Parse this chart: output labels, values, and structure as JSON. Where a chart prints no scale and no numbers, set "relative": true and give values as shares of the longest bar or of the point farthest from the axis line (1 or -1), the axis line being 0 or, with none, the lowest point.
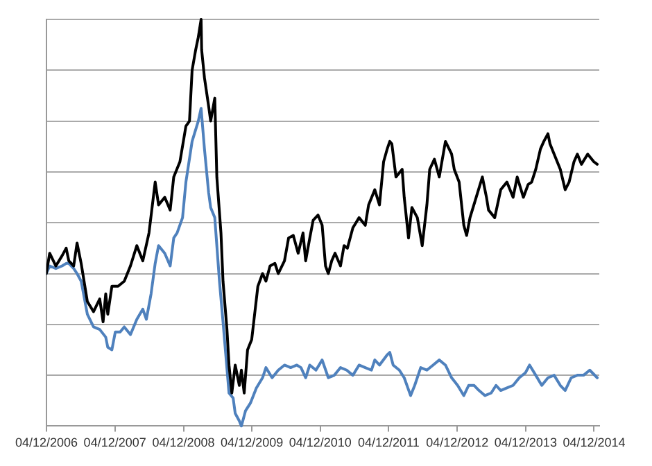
{
  "chart_data": {
    "type": "line",
    "relative": true,
    "grid": "y",
    "legend": false,
    "marker": "none",
    "line_style": "solid",
    "xlim": [
      "2006-12-03",
      "2015-01-01"
    ],
    "xticks": [
      {
        "value": "2006-12-04",
        "label": "04/12/2006"
      },
      {
        "value": "2007-12-04",
        "label": "04/12/2007"
      },
      {
        "value": "2008-12-04",
        "label": "04/12/2008"
      },
      {
        "value": "2009-12-04",
        "label": "04/12/2009"
      },
      {
        "value": "2010-12-04",
        "label": "04/12/2010"
      },
      {
        "value": "2011-12-04",
        "label": "04/12/2011"
      },
      {
        "value": "2012-12-04",
        "label": "04/12/2012"
      },
      {
        "value": "2013-12-04",
        "label": "04/12/2013"
      },
      {
        "value": "2014-12-04",
        "label": "04/12/2014"
      }
    ],
    "series": [
      {
        "color": "#000000",
        "x": [
          "2006-12-03",
          "2006-12-21",
          "2007-01-23",
          "2007-02-25",
          "2007-03-19",
          "2007-04-02",
          "2007-04-28",
          "2007-05-16",
          "2007-06-07",
          "2007-07-10",
          "2007-08-12",
          "2007-09-14",
          "2007-10-02",
          "2007-10-16",
          "2007-10-27",
          "2007-11-18",
          "2007-12-21",
          "2008-01-23",
          "2008-02-25",
          "2008-03-30",
          "2008-05-01",
          "2008-06-03",
          "2008-07-06",
          "2008-07-24",
          "2008-08-26",
          "2008-09-24",
          "2008-10-13",
          "2008-11-15",
          "2008-12-17",
          "2009-01-05",
          "2009-01-19",
          "2009-02-07",
          "2009-02-21",
          "2009-03-08",
          "2009-03-11",
          "2009-03-26",
          "2009-04-17",
          "2009-04-28",
          "2009-05-20",
          "2009-05-31",
          "2009-06-22",
          "2009-07-03",
          "2009-07-24",
          "2009-08-04",
          "2009-08-19",
          "2009-09-06",
          "2009-09-28",
          "2009-10-09",
          "2009-10-24",
          "2009-11-11",
          "2009-12-03",
          "2009-12-14",
          "2010-01-05",
          "2010-01-30",
          "2010-02-17",
          "2010-03-11",
          "2010-04-06",
          "2010-04-24",
          "2010-05-27",
          "2010-06-18",
          "2010-07-13",
          "2010-08-08",
          "2010-09-03",
          "2010-09-17",
          "2010-10-09",
          "2010-10-27",
          "2010-11-22",
          "2010-12-14",
          "2011-01-01",
          "2011-01-16",
          "2011-02-03",
          "2011-02-21",
          "2011-03-22",
          "2011-04-10",
          "2011-04-28",
          "2011-05-27",
          "2011-06-29",
          "2011-08-01",
          "2011-08-19",
          "2011-09-21",
          "2011-10-16",
          "2011-11-07",
          "2011-11-26",
          "2011-12-10",
          "2011-12-21",
          "2012-01-12",
          "2012-02-14",
          "2012-02-25",
          "2012-03-19",
          "2012-04-06",
          "2012-05-05",
          "2012-05-31",
          "2012-06-25",
          "2012-07-10",
          "2012-08-04",
          "2012-08-30",
          "2012-10-02",
          "2012-11-04",
          "2012-11-18",
          "2012-12-14",
          "2013-01-08",
          "2013-01-23",
          "2013-02-10",
          "2013-03-15",
          "2013-04-17",
          "2013-05-09",
          "2013-05-20",
          "2013-06-22",
          "2013-07-24",
          "2013-08-26",
          "2013-09-28",
          "2013-10-20",
          "2013-11-22",
          "2013-12-17",
          "2014-01-05",
          "2014-01-27",
          "2014-02-21",
          "2014-03-11",
          "2014-04-02",
          "2014-04-13",
          "2014-05-05",
          "2014-06-07",
          "2014-07-03",
          "2014-07-24",
          "2014-08-19",
          "2014-09-06",
          "2014-09-28",
          "2014-10-31",
          "2014-12-03",
          "2014-12-21"
        ],
        "values": [
          0,
          0.08,
          0.03,
          0.07,
          0.1,
          0.05,
          0.03,
          0.12,
          0.04,
          -0.11,
          -0.15,
          -0.1,
          -0.19,
          -0.08,
          -0.16,
          -0.05,
          -0.05,
          -0.03,
          0.03,
          0.11,
          0.05,
          0.16,
          0.36,
          0.27,
          0.3,
          0.25,
          0.38,
          0.44,
          0.58,
          0.6,
          0.8,
          0.88,
          0.93,
          1.0,
          0.88,
          0.77,
          0.66,
          0.6,
          0.69,
          0.38,
          0.16,
          -0.03,
          -0.22,
          -0.36,
          -0.47,
          -0.36,
          -0.44,
          -0.38,
          -0.47,
          -0.3,
          -0.26,
          -0.19,
          -0.05,
          0,
          -0.03,
          0.03,
          0.04,
          0,
          0.05,
          0.14,
          0.15,
          0.08,
          0.16,
          0.05,
          0.14,
          0.21,
          0.23,
          0.19,
          0.03,
          0,
          0.05,
          0.08,
          0.03,
          0.11,
          0.1,
          0.18,
          0.22,
          0.19,
          0.27,
          0.33,
          0.27,
          0.44,
          0.49,
          0.52,
          0.51,
          0.38,
          0.41,
          0.3,
          0.14,
          0.26,
          0.22,
          0.11,
          0.27,
          0.41,
          0.45,
          0.38,
          0.52,
          0.47,
          0.41,
          0.36,
          0.19,
          0.15,
          0.22,
          0.3,
          0.38,
          0.3,
          0.25,
          0.22,
          0.33,
          0.36,
          0.3,
          0.38,
          0.3,
          0.35,
          0.36,
          0.41,
          0.49,
          0.52,
          0.55,
          0.51,
          0.47,
          0.41,
          0.33,
          0.36,
          0.44,
          0.47,
          0.43,
          0.47,
          0.44,
          0.43
        ]
      },
      {
        "color": "#4f81bd",
        "x": [
          "2006-12-03",
          "2006-12-21",
          "2007-01-23",
          "2007-02-25",
          "2007-03-19",
          "2007-04-02",
          "2007-04-28",
          "2007-05-16",
          "2007-06-07",
          "2007-07-10",
          "2007-08-12",
          "2007-09-14",
          "2007-10-16",
          "2007-10-27",
          "2007-11-18",
          "2007-12-06",
          "2008-01-01",
          "2008-01-23",
          "2008-02-25",
          "2008-03-30",
          "2008-05-01",
          "2008-05-20",
          "2008-06-14",
          "2008-07-06",
          "2008-07-24",
          "2008-08-26",
          "2008-09-24",
          "2008-10-13",
          "2008-10-31",
          "2008-11-29",
          "2008-12-17",
          "2009-01-19",
          "2009-02-21",
          "2009-03-08",
          "2009-03-26",
          "2009-04-17",
          "2009-04-28",
          "2009-05-20",
          "2009-06-14",
          "2009-07-03",
          "2009-08-04",
          "2009-08-26",
          "2009-09-06",
          "2009-09-28",
          "2009-10-09",
          "2009-10-31",
          "2009-11-26",
          "2009-12-28",
          "2010-01-30",
          "2010-02-17",
          "2010-03-22",
          "2010-04-24",
          "2010-05-27",
          "2010-06-29",
          "2010-08-01",
          "2010-08-23",
          "2010-09-17",
          "2010-10-09",
          "2010-11-11",
          "2010-12-14",
          "2011-01-16",
          "2011-02-17",
          "2011-03-22",
          "2011-04-24",
          "2011-05-27",
          "2011-06-29",
          "2011-08-01",
          "2011-09-03",
          "2011-09-21",
          "2011-10-16",
          "2011-11-26",
          "2011-12-10",
          "2011-12-28",
          "2012-01-30",
          "2012-02-25",
          "2012-03-30",
          "2012-04-21",
          "2012-05-23",
          "2012-06-25",
          "2012-07-28",
          "2012-08-30",
          "2012-10-02",
          "2012-11-04",
          "2012-12-06",
          "2013-01-08",
          "2013-02-03",
          "2013-03-04",
          "2013-03-30",
          "2013-05-01",
          "2013-06-03",
          "2013-06-29",
          "2013-07-24",
          "2013-08-26",
          "2013-09-28",
          "2013-10-31",
          "2013-12-03",
          "2013-12-25",
          "2014-01-27",
          "2014-02-28",
          "2014-04-02",
          "2014-05-05",
          "2014-06-07",
          "2014-07-03",
          "2014-08-04",
          "2014-09-06",
          "2014-10-09",
          "2014-11-11",
          "2014-12-21"
        ],
        "values": [
          0,
          0.03,
          0.02,
          0.03,
          0.04,
          0.04,
          0.02,
          0,
          -0.03,
          -0.16,
          -0.21,
          -0.22,
          -0.25,
          -0.29,
          -0.3,
          -0.23,
          -0.23,
          -0.21,
          -0.24,
          -0.18,
          -0.14,
          -0.18,
          -0.08,
          0.04,
          0.11,
          0.08,
          0.03,
          0.14,
          0.16,
          0.22,
          0.36,
          0.52,
          0.6,
          0.65,
          0.49,
          0.32,
          0.26,
          0.22,
          -0.03,
          -0.19,
          -0.47,
          -0.49,
          -0.55,
          -0.58,
          -0.6,
          -0.54,
          -0.51,
          -0.45,
          -0.41,
          -0.37,
          -0.41,
          -0.38,
          -0.36,
          -0.37,
          -0.36,
          -0.37,
          -0.41,
          -0.36,
          -0.38,
          -0.34,
          -0.41,
          -0.4,
          -0.37,
          -0.38,
          -0.4,
          -0.36,
          -0.37,
          -0.38,
          -0.34,
          -0.36,
          -0.32,
          -0.31,
          -0.36,
          -0.38,
          -0.41,
          -0.48,
          -0.44,
          -0.37,
          -0.38,
          -0.36,
          -0.34,
          -0.36,
          -0.41,
          -0.44,
          -0.48,
          -0.44,
          -0.44,
          -0.46,
          -0.48,
          -0.47,
          -0.44,
          -0.46,
          -0.45,
          -0.44,
          -0.41,
          -0.39,
          -0.36,
          -0.4,
          -0.44,
          -0.41,
          -0.4,
          -0.44,
          -0.46,
          -0.41,
          -0.4,
          -0.4,
          -0.38,
          -0.41
        ]
      }
    ]
  }
}
